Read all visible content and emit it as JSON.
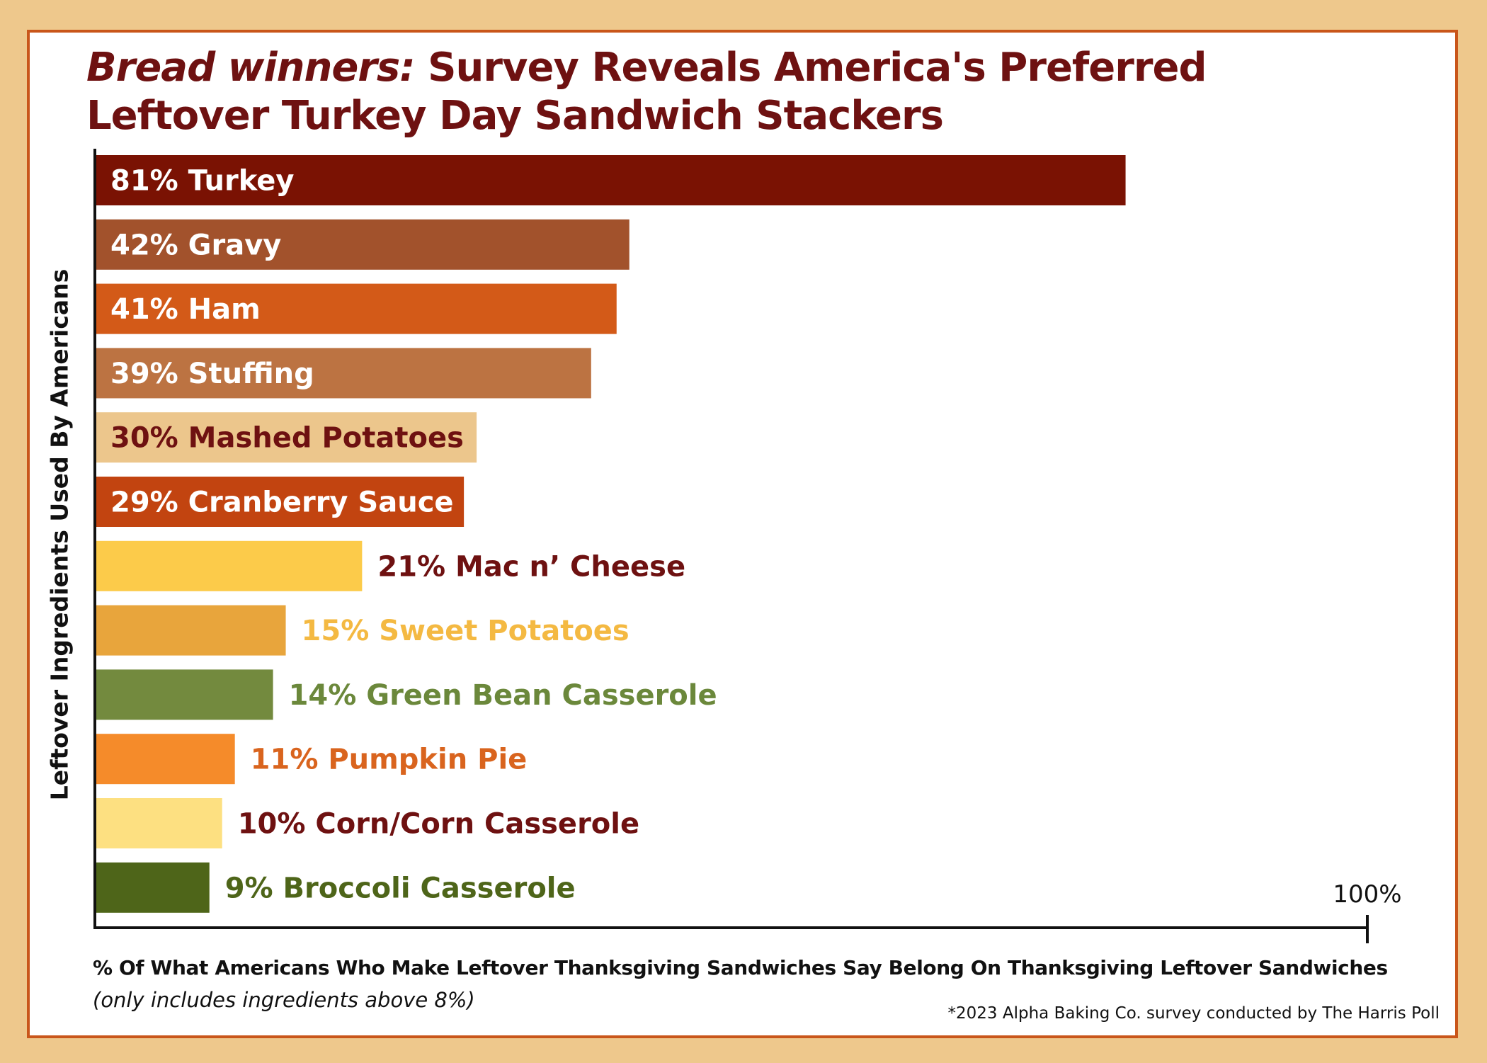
{
  "title": {
    "lead": "Bread winners:",
    "rest_line1": " Survey Reveals America's Preferred",
    "line2": "Leftover Turkey Day Sandwich Stackers"
  },
  "chart_data": {
    "type": "bar",
    "orientation": "horizontal",
    "xlim": [
      0,
      100
    ],
    "x_end_label": "100%",
    "ylabel": "Leftover Ingredients Used By Americans",
    "xlabel": "% Of What Americans Who Make Leftover Thanksgiving Sandwiches Say Belong On Thanksgiving Leftover Sandwiches",
    "note": "(only includes ingredients above 8%)",
    "source": "*2023 Alpha Baking Co. survey conducted by The Harris Poll",
    "bars": [
      {
        "label": "81% Turkey",
        "value": 81,
        "color": "#7A1203",
        "label_color": "#FFFFFF",
        "label_inside": true
      },
      {
        "label": "42% Gravy",
        "value": 42,
        "color": "#A2522C",
        "label_color": "#FFFFFF",
        "label_inside": true
      },
      {
        "label": "41% Ham",
        "value": 41,
        "color": "#D35A18",
        "label_color": "#FFFFFF",
        "label_inside": true
      },
      {
        "label": "39% Stuffing",
        "value": 39,
        "color": "#BC7342",
        "label_color": "#FFFFFF",
        "label_inside": true
      },
      {
        "label": "30% Mashed Potatoes",
        "value": 30,
        "color": "#ECC68C",
        "label_color": "#6E1111",
        "label_inside": true
      },
      {
        "label": "29% Cranberry Sauce",
        "value": 29,
        "color": "#C24410",
        "label_color": "#FFFFFF",
        "label_inside": true
      },
      {
        "label": "21% Mac n’ Cheese",
        "value": 21,
        "color": "#FCCB4A",
        "label_color": "#6E1111",
        "label_inside": false
      },
      {
        "label": "15% Sweet Potatoes",
        "value": 15,
        "color": "#E8A53C",
        "label_color": "#F4B942",
        "label_inside": false
      },
      {
        "label": "14% Green Bean Casserole",
        "value": 14,
        "color": "#738A3E",
        "label_color": "#6B883B",
        "label_inside": false
      },
      {
        "label": "11% Pumpkin Pie",
        "value": 11,
        "color": "#F58B2A",
        "label_color": "#D9641E",
        "label_inside": false
      },
      {
        "label": "10% Corn/Corn Casserole",
        "value": 10,
        "color": "#FDE081",
        "label_color": "#6E1111",
        "label_inside": false
      },
      {
        "label": "9% Broccoli Casserole",
        "value": 9,
        "color": "#4E6519",
        "label_color": "#4E6519",
        "label_inside": false
      }
    ]
  }
}
